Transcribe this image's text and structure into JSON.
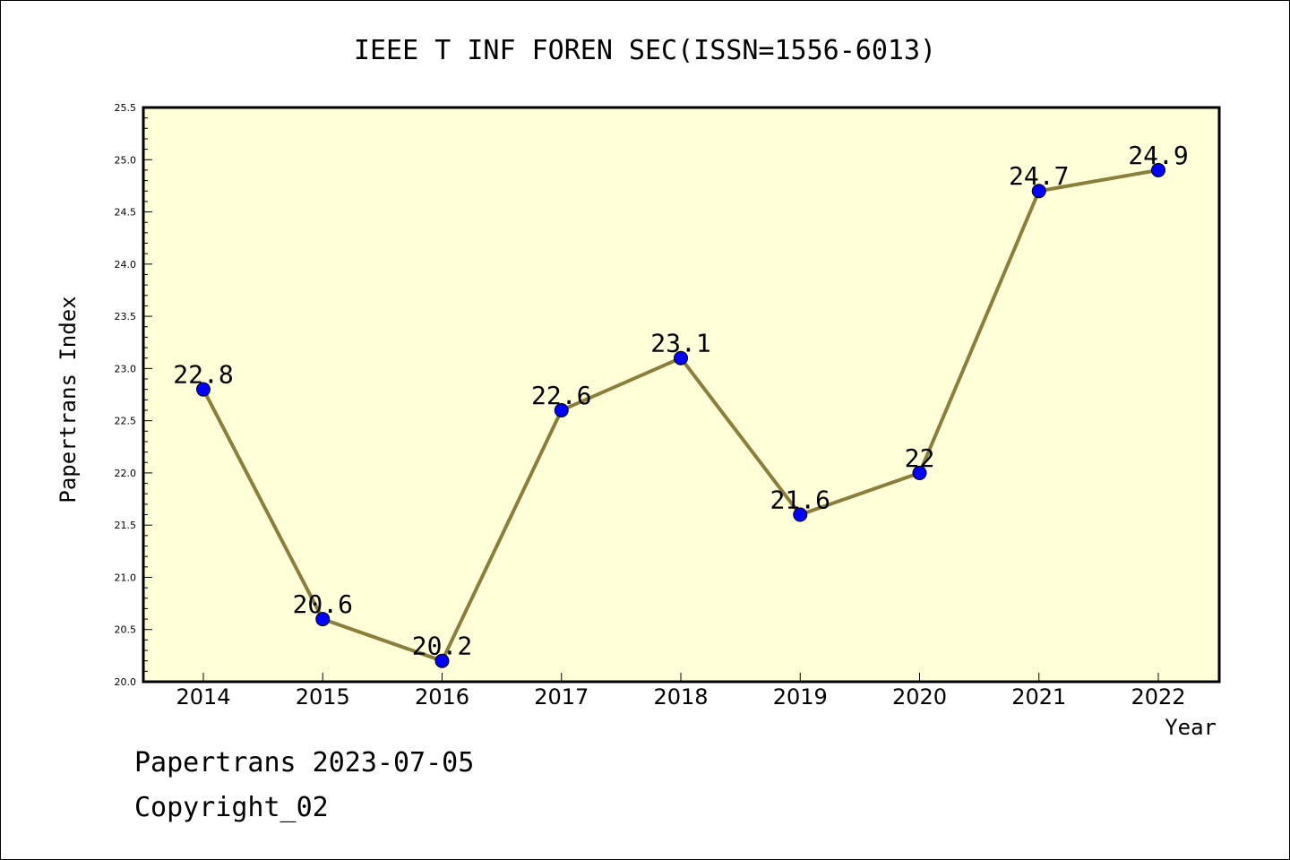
{
  "chart_data": {
    "type": "line",
    "title": "IEEE T INF FOREN SEC(ISSN=1556-6013)",
    "xlabel": "Year",
    "ylabel": "Papertrans Index",
    "categories": [
      "2014",
      "2015",
      "2016",
      "2017",
      "2018",
      "2019",
      "2020",
      "2021",
      "2022"
    ],
    "series": [
      {
        "values": [
          22.8,
          20.6,
          20.2,
          22.6,
          23.1,
          21.6,
          22.0,
          24.7,
          24.9
        ],
        "data_labels": [
          "22.8",
          "20.6",
          "20.2",
          "22.6",
          "23.1",
          "21.6",
          "22",
          "24.7",
          "24.9"
        ]
      }
    ],
    "ylim": [
      20.0,
      25.5
    ],
    "yticks": [
      "20.0",
      "20.5",
      "21.0",
      "21.5",
      "22.0",
      "22.5",
      "23.0",
      "23.5",
      "24.0",
      "24.5",
      "25.0",
      "25.5"
    ],
    "grid": false,
    "legend": "none",
    "colors": {
      "plot_background": "#ffffd8",
      "line": "#8b7d3a",
      "marker": "#0000ff"
    }
  },
  "footer": {
    "line1": "Papertrans 2023-07-05",
    "line2": "Copyright_02"
  }
}
